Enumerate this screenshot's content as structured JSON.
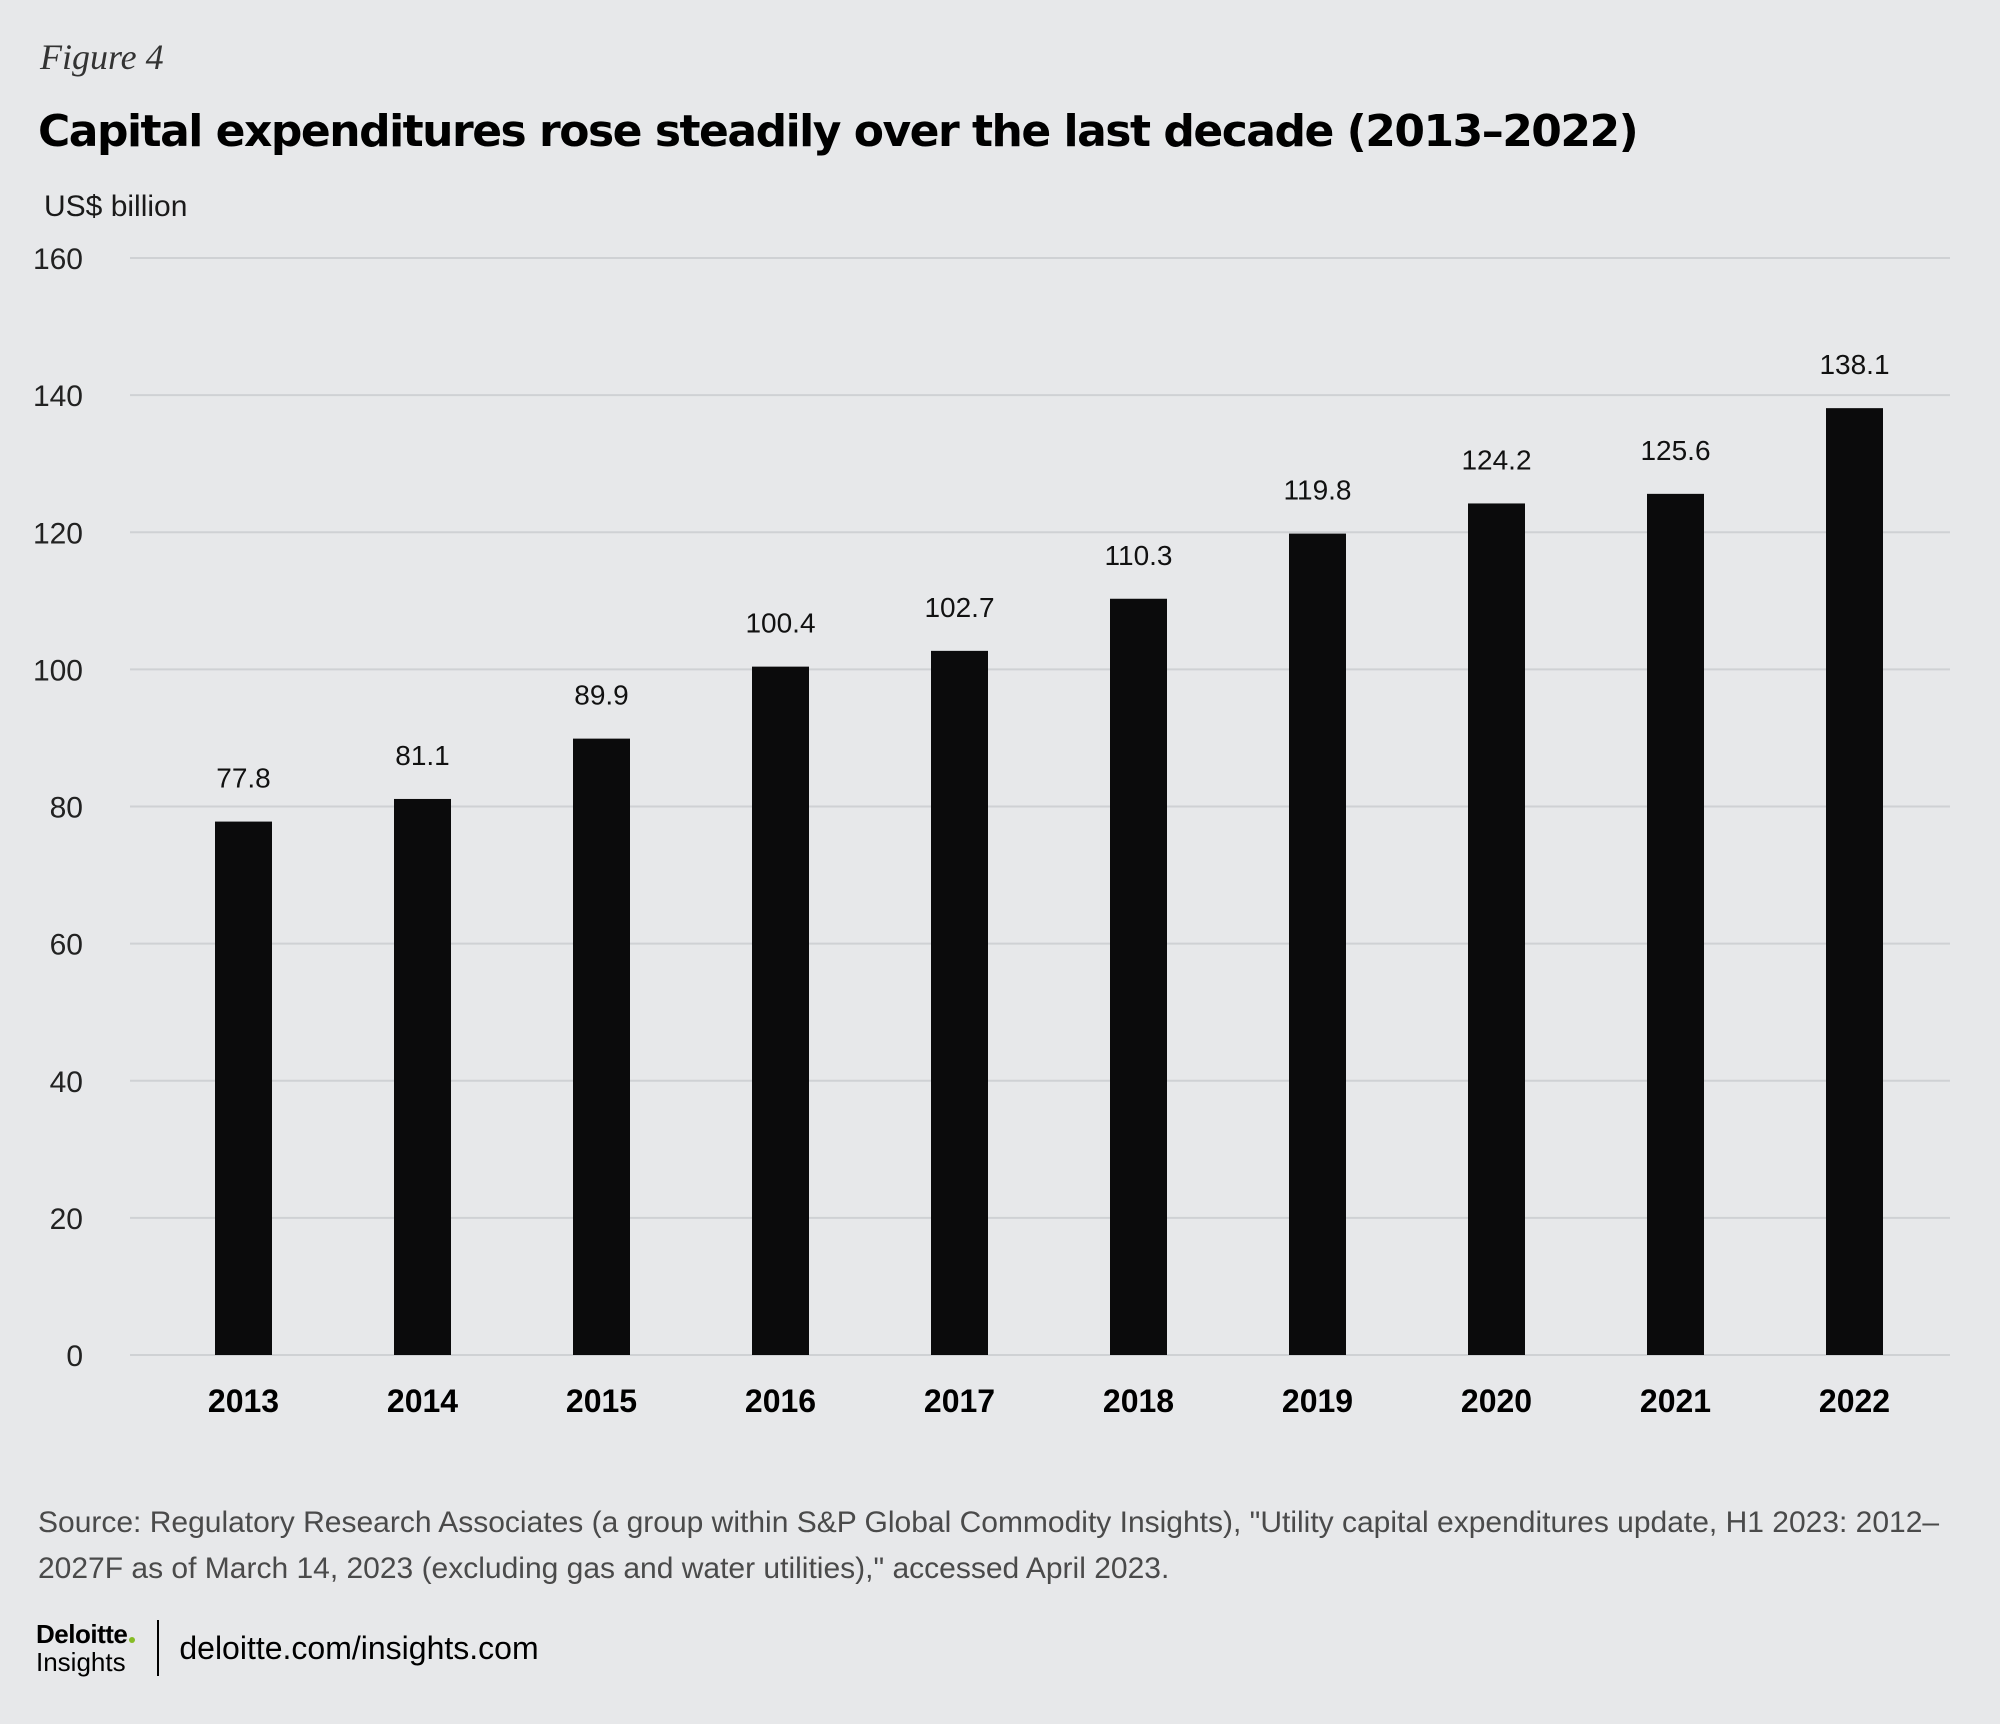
{
  "figure_label": "Figure 4",
  "unit_label": "US$ billion",
  "source": "Source: Regulatory Research Associates (a group within S&P Global Commodity Insights), \"Utility capital expenditures update, H1 2023: 2012–2027F as of March 14, 2023 (excluding gas and water utilities),\" accessed April 2023.",
  "footer": {
    "brand": "Deloitte",
    "brand_sub": "Insights",
    "link": "deloitte.com/insights.com"
  },
  "colors": {
    "bar": "#0b0b0c",
    "grid": "#cfd1d4",
    "background": "#e7e8ea",
    "brand_dot": "#86bc25"
  },
  "chart_data": {
    "type": "bar",
    "title": "Capital expenditures rose steadily over the last decade (2013–2022)",
    "xlabel": "",
    "ylabel": "US$ billion",
    "ylim": [
      0,
      160
    ],
    "yticks": [
      0,
      20,
      40,
      60,
      80,
      100,
      120,
      140,
      160
    ],
    "grid": true,
    "categories": [
      "2013",
      "2014",
      "2015",
      "2016",
      "2017",
      "2018",
      "2019",
      "2020",
      "2021",
      "2022"
    ],
    "values": [
      77.8,
      81.1,
      89.9,
      100.4,
      102.7,
      110.3,
      119.8,
      124.2,
      125.6,
      138.1
    ],
    "value_labels": [
      "77.8",
      "81.1",
      "89.9",
      "100.4",
      "102.7",
      "110.3",
      "119.8",
      "124.2",
      "125.6",
      "138.1"
    ]
  }
}
